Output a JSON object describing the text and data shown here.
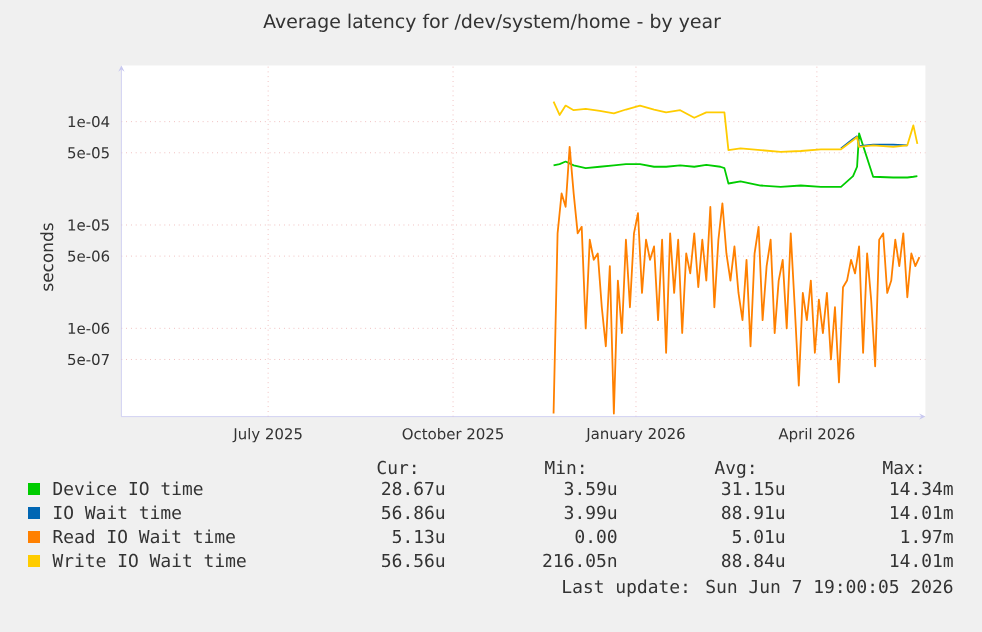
{
  "chart_data": {
    "type": "line",
    "title": "Average latency for /dev/system/home - by year",
    "ylabel": "seconds",
    "xlim": [
      "2025-05-03",
      "2026-06-07"
    ],
    "xticks": [
      {
        "value": "2025-07-15",
        "label": "July 2025"
      },
      {
        "value": "2025-10-15",
        "label": "October 2025"
      },
      {
        "value": "2026-01-14",
        "label": "January 2026"
      },
      {
        "value": "2026-04-14",
        "label": "April 2026"
      }
    ],
    "ylim": [
      1.4e-07,
      0.00035
    ],
    "yticks": [
      {
        "value": 0.0001,
        "label": "1e-04"
      },
      {
        "value": 5e-05,
        "label": "5e-05"
      },
      {
        "value": 1e-05,
        "label": "1e-05"
      },
      {
        "value": 5e-06,
        "label": "5e-06"
      },
      {
        "value": 1e-06,
        "label": "1e-06"
      },
      {
        "value": 5e-07,
        "label": "5e-07"
      }
    ],
    "log": true,
    "grid": true,
    "legend": "bottom",
    "series": [
      {
        "name": "Device IO time",
        "color": "#00cc00",
        "x": [
          "2025-12-04",
          "2025-12-07",
          "2025-12-10",
          "2025-12-14",
          "2025-12-20",
          "2025-12-27",
          "2026-01-03",
          "2026-01-09",
          "2026-01-16",
          "2026-01-23",
          "2026-01-29",
          "2026-02-05",
          "2026-02-12",
          "2026-02-18",
          "2026-02-25",
          "2026-02-27",
          "2026-03-01",
          "2026-03-07",
          "2026-03-17",
          "2026-03-27",
          "2026-04-06",
          "2026-04-16",
          "2026-04-26",
          "2026-05-02",
          "2026-05-04",
          "2026-05-05",
          "2026-05-12",
          "2026-05-22",
          "2026-05-29",
          "2026-06-01",
          "2026-06-03"
        ],
        "values": [
          3.77e-05,
          3.88e-05,
          4.11e-05,
          3.77e-05,
          3.55e-05,
          3.66e-05,
          3.77e-05,
          3.88e-05,
          3.88e-05,
          3.66e-05,
          3.66e-05,
          3.77e-05,
          3.66e-05,
          3.82e-05,
          3.66e-05,
          3.55e-05,
          2.52e-05,
          2.64e-05,
          2.41e-05,
          2.34e-05,
          2.41e-05,
          2.34e-05,
          2.34e-05,
          2.97e-05,
          3.66e-05,
          7.7e-05,
          2.93e-05,
          2.88e-05,
          2.88e-05,
          2.93e-05,
          2.97e-05
        ]
      },
      {
        "name": "IO Wait time",
        "color": "#0066b3",
        "x": [
          "2026-04-26",
          "2026-05-02",
          "2026-05-04",
          "2026-05-05",
          "2026-05-12",
          "2026-05-22",
          "2026-05-29"
        ],
        "values": [
          5.5e-05,
          6.8e-05,
          7.2e-05,
          5.8e-05,
          6e-05,
          6e-05,
          5.9e-05
        ]
      },
      {
        "name": "Read IO Wait time",
        "color": "#ff8000",
        "x": [
          "2025-12-04",
          "2025-12-06",
          "2025-12-08",
          "2025-12-10",
          "2025-12-12",
          "2025-12-14",
          "2025-12-16",
          "2025-12-18",
          "2025-12-20",
          "2025-12-22",
          "2025-12-24",
          "2025-12-26",
          "2025-12-28",
          "2025-12-30",
          "2026-01-01",
          "2026-01-03",
          "2026-01-05",
          "2026-01-07",
          "2026-01-09",
          "2026-01-11",
          "2026-01-13",
          "2026-01-15",
          "2026-01-17",
          "2026-01-19",
          "2026-01-21",
          "2026-01-23",
          "2026-01-25",
          "2026-01-27",
          "2026-01-29",
          "2026-01-31",
          "2026-02-02",
          "2026-02-04",
          "2026-02-06",
          "2026-02-08",
          "2026-02-10",
          "2026-02-12",
          "2026-02-14",
          "2026-02-16",
          "2026-02-18",
          "2026-02-20",
          "2026-02-22",
          "2026-02-24",
          "2026-02-26",
          "2026-02-28",
          "2026-03-02",
          "2026-03-04",
          "2026-03-06",
          "2026-03-08",
          "2026-03-10",
          "2026-03-12",
          "2026-03-14",
          "2026-03-16",
          "2026-03-18",
          "2026-03-20",
          "2026-03-22",
          "2026-03-24",
          "2026-03-26",
          "2026-03-28",
          "2026-03-30",
          "2026-04-01",
          "2026-04-03",
          "2026-04-05",
          "2026-04-07",
          "2026-04-09",
          "2026-04-11",
          "2026-04-13",
          "2026-04-15",
          "2026-04-17",
          "2026-04-19",
          "2026-04-21",
          "2026-04-23",
          "2026-04-25",
          "2026-04-27",
          "2026-04-29",
          "2026-05-01",
          "2026-05-03",
          "2026-05-05",
          "2026-05-07",
          "2026-05-09",
          "2026-05-11",
          "2026-05-13",
          "2026-05-15",
          "2026-05-17",
          "2026-05-19",
          "2026-05-21",
          "2026-05-23",
          "2026-05-25",
          "2026-05-27",
          "2026-05-29",
          "2026-05-31",
          "2026-06-02",
          "2026-06-04"
        ],
        "values": [
          1.5e-07,
          8.3e-06,
          2.02e-05,
          1.5e-05,
          5.7e-05,
          2.02e-05,
          8.3e-06,
          9.6e-06,
          1e-06,
          7.2e-06,
          4.6e-06,
          5.3e-06,
          1.6e-06,
          6.7e-07,
          4e-06,
          1.5e-07,
          2.9e-06,
          9e-07,
          7.2e-06,
          1.6e-06,
          8.3e-06,
          1.3e-05,
          2.2e-06,
          7.2e-06,
          4.6e-06,
          6.2e-06,
          1.2e-06,
          7.2e-06,
          5.8e-07,
          8.3e-06,
          2.2e-06,
          7.2e-06,
          9e-07,
          5.3e-06,
          3.4e-06,
          8.3e-06,
          2.5e-06,
          7.2e-06,
          2.9e-06,
          1.5e-05,
          1.6e-06,
          7.2e-06,
          1.62e-05,
          5.3e-06,
          2.9e-06,
          6.2e-06,
          2.2e-06,
          1.2e-06,
          4.6e-06,
          6.7e-07,
          5.3e-06,
          9.6e-06,
          1.2e-06,
          4e-06,
          7.2e-06,
          9e-07,
          2.9e-06,
          4.6e-06,
          1e-06,
          8.3e-06,
          1.6e-06,
          2.8e-07,
          2.2e-06,
          1.2e-06,
          2.9e-06,
          5.8e-07,
          1.9e-06,
          9e-07,
          2.2e-06,
          5e-07,
          1.6e-06,
          3e-07,
          2.5e-06,
          2.9e-06,
          4.6e-06,
          3.4e-06,
          6.2e-06,
          5.8e-07,
          5.3e-06,
          1.9e-06,
          4.3e-07,
          7.2e-06,
          8.3e-06,
          2.2e-06,
          2.9e-06,
          7.2e-06,
          4e-06,
          8.3e-06,
          2e-06,
          5.3e-06,
          4e-06,
          4.9e-06
        ]
      },
      {
        "name": "Write IO Wait time",
        "color": "#ffcc00",
        "x": [
          "2025-12-04",
          "2025-12-07",
          "2025-12-10",
          "2025-12-14",
          "2025-12-20",
          "2025-12-27",
          "2026-01-03",
          "2026-01-09",
          "2026-01-16",
          "2026-01-23",
          "2026-01-29",
          "2026-02-05",
          "2026-02-12",
          "2026-02-18",
          "2026-02-25",
          "2026-02-27",
          "2026-03-01",
          "2026-03-07",
          "2026-03-17",
          "2026-03-27",
          "2026-04-06",
          "2026-04-16",
          "2026-04-26",
          "2026-05-02",
          "2026-05-04",
          "2026-05-05",
          "2026-05-12",
          "2026-05-22",
          "2026-05-29",
          "2026-06-01",
          "2026-06-03"
        ],
        "values": [
          0.000156,
          0.000116,
          0.000143,
          0.000129,
          0.000133,
          0.000127,
          0.00012,
          0.000131,
          0.000143,
          0.000131,
          0.000123,
          0.000129,
          0.000109,
          0.000123,
          0.000123,
          0.000123,
          5.3e-05,
          5.5e-05,
          5.3e-05,
          5.1e-05,
          5.2e-05,
          5.4e-05,
          5.4e-05,
          6.6e-05,
          7.1e-05,
          5.7e-05,
          5.9e-05,
          5.7e-05,
          5.9e-05,
          9.2e-05,
          6.1e-05
        ]
      }
    ],
    "annotations": [
      "Cur:",
      "Min:",
      "Avg:",
      "Max:",
      "28.67u",
      "3.59u",
      "31.15u",
      "14.34m",
      "56.86u",
      "3.99u",
      "88.91u",
      "14.01m",
      "5.13u",
      "0.00",
      "5.01u",
      "1.97m",
      "56.56u",
      "216.05n",
      "88.84u",
      "14.01m",
      "Last update: Sun Jun  7 19:00:05 2026"
    ]
  }
}
